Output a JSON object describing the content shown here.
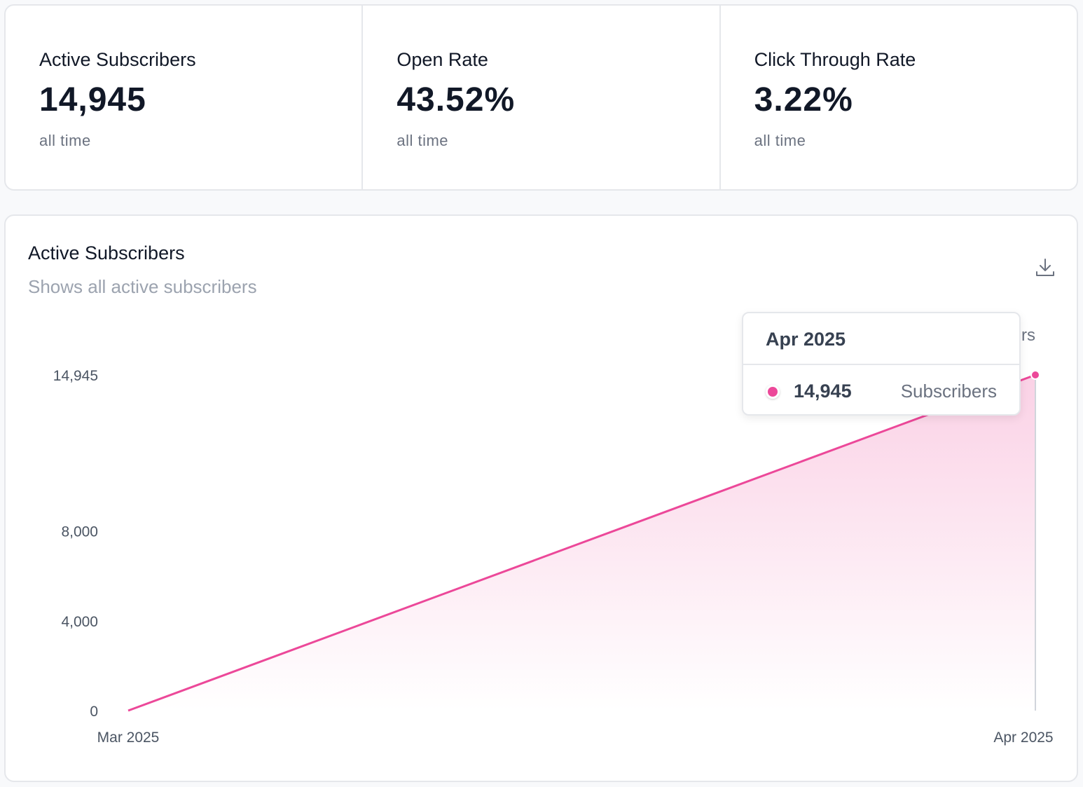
{
  "stats": [
    {
      "label": "Active Subscribers",
      "value": "14,945",
      "sub": "all time"
    },
    {
      "label": "Open Rate",
      "value": "43.52%",
      "sub": "all time"
    },
    {
      "label": "Click Through Rate",
      "value": "3.22%",
      "sub": "all time"
    }
  ],
  "card": {
    "title": "Active Subscribers",
    "subtitle": "Shows all active subscribers",
    "download_icon": "download-icon"
  },
  "tooltip": {
    "label": "Apr 2025",
    "value": "14,945",
    "series": "Subscribers"
  },
  "colors": {
    "series": "#ec4899"
  },
  "chart_data": {
    "type": "area",
    "title": "Active Subscribers",
    "x": [
      "Mar 2025",
      "Apr 2025"
    ],
    "series": [
      {
        "name": "Subscribers",
        "values": [
          0,
          14945
        ]
      }
    ],
    "yticks": [
      0,
      4000,
      8000,
      14945
    ],
    "ytick_labels": [
      "0",
      "4,000",
      "8,000",
      "14,945"
    ],
    "ylim": [
      0,
      14945
    ],
    "legend": "top-right",
    "grid": false
  }
}
